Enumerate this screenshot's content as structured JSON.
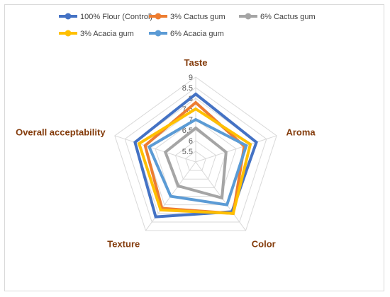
{
  "chart_data": {
    "type": "radar",
    "axes": [
      "Taste",
      "Aroma",
      "Color",
      "Texture",
      "Overall acceptability"
    ],
    "scale": {
      "min": 5,
      "max": 9,
      "ticks": [
        "5.5",
        "6",
        "6.5",
        "7",
        "7.5",
        "8",
        "8.5",
        "9"
      ],
      "tick_values": [
        5.5,
        6,
        6.5,
        7,
        7.5,
        8,
        8.5,
        9
      ]
    },
    "series": [
      {
        "name": "100% Flour (Control)",
        "color": "#4472c4",
        "values": [
          8.2,
          8.0,
          7.9,
          8.2,
          8.0
        ]
      },
      {
        "name": "3% Cactus gum",
        "color": "#ed7d31",
        "values": [
          7.8,
          7.4,
          8.0,
          7.7,
          7.5
        ]
      },
      {
        "name": "6% Cactus gum",
        "color": "#a5a5a5",
        "values": [
          6.6,
          6.5,
          7.1,
          6.4,
          6.5
        ]
      },
      {
        "name": "3% Acacia gum",
        "color": "#ffc000",
        "values": [
          7.5,
          7.7,
          8.0,
          7.8,
          7.8
        ]
      },
      {
        "name": "6% Acacia gum",
        "color": "#5b9bd5",
        "values": [
          7.0,
          7.5,
          7.5,
          7.0,
          7.3
        ]
      }
    ],
    "legend_position": "top",
    "grid": true
  }
}
